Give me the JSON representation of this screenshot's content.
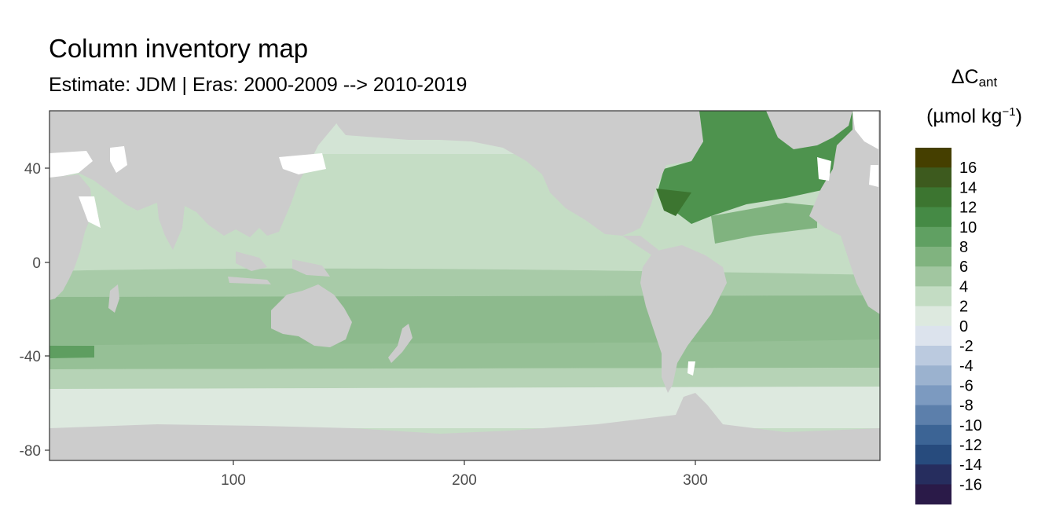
{
  "title": "Column inventory map",
  "subtitle": "Estimate: JDM  | Eras: 2000-2009 --> 2010-2019",
  "legend": {
    "title_delta": "ΔC",
    "title_sub": "ant",
    "unit_prefix": "(µmol kg",
    "unit_sup": "−1",
    "unit_suffix": ")",
    "bins": [
      {
        "color": "#453F00",
        "label": "16"
      },
      {
        "color": "#3D5A1E",
        "label": "14"
      },
      {
        "color": "#3C7530",
        "label": "12"
      },
      {
        "color": "#458A45",
        "label": "10"
      },
      {
        "color": "#60A062",
        "label": "8"
      },
      {
        "color": "#80B37F",
        "label": "6"
      },
      {
        "color": "#A1C6A0",
        "label": "4"
      },
      {
        "color": "#C3DCC3",
        "label": "2"
      },
      {
        "color": "#DDE9DF",
        "label": "0"
      },
      {
        "color": "#DCE3ED",
        "label": "-2"
      },
      {
        "color": "#BBCADF",
        "label": "-4"
      },
      {
        "color": "#9BB2CF",
        "label": "-6"
      },
      {
        "color": "#7C9AC0",
        "label": "-8"
      },
      {
        "color": "#5C7FAB",
        "label": "-10"
      },
      {
        "color": "#3C6495",
        "label": "-12"
      },
      {
        "color": "#274B7D",
        "label": "-14"
      },
      {
        "color": "#262D5E",
        "label": "-16"
      },
      {
        "color": "#2A1A48",
        "label": ""
      }
    ]
  },
  "axes": {
    "x_ticks": [
      "100",
      "200",
      "300"
    ],
    "y_ticks": [
      "40",
      "0",
      "-40",
      "-80"
    ]
  },
  "colors": {
    "land": "#CCCCCC",
    "missing": "#FFFFFF",
    "frame": "#333333"
  }
}
